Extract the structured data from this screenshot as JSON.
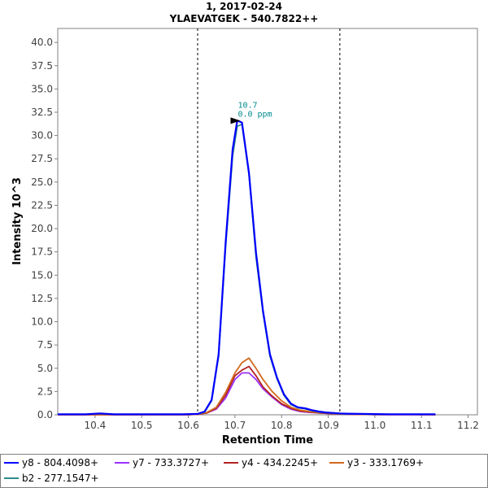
{
  "chart_data": {
    "type": "line",
    "title": "1, 2017-02-24",
    "subtitle": "YLAEVATGEK - 540.7822++",
    "xlabel": "Retention Time",
    "ylabel": "Intensity 10^3",
    "xlim": [
      10.32,
      11.22
    ],
    "ylim": [
      0,
      41.5
    ],
    "x_ticks": [
      "10.4",
      "10.5",
      "10.6",
      "10.7",
      "10.8",
      "10.9",
      "11.0",
      "11.1",
      "11.2"
    ],
    "y_ticks": [
      "0.0",
      "2.5",
      "5.0",
      "7.5",
      "10.0",
      "12.5",
      "15.0",
      "17.5",
      "20.0",
      "22.5",
      "25.0",
      "27.5",
      "30.0",
      "32.5",
      "35.0",
      "37.5",
      "40.0"
    ],
    "integration_bounds": [
      10.62,
      10.925
    ],
    "peak_annotation": {
      "rt": 10.715,
      "intensity": 31.6,
      "label_rt": "10.7",
      "label_ppm": "0.0 ppm"
    },
    "legend_placement": "bottom",
    "series": [
      {
        "name": "y8 - 804.4098+",
        "color": "#0000ff",
        "x": [
          10.32,
          10.35,
          10.38,
          10.41,
          10.44,
          10.47,
          10.5,
          10.53,
          10.56,
          10.59,
          10.62,
          10.635,
          10.65,
          10.665,
          10.68,
          10.695,
          10.705,
          10.715,
          10.73,
          10.745,
          10.76,
          10.775,
          10.79,
          10.805,
          10.82,
          10.835,
          10.85,
          10.865,
          10.88,
          10.895,
          10.91,
          10.925,
          10.94,
          10.97,
          11.0,
          11.03,
          11.06,
          11.09,
          11.13
        ],
        "values": [
          0.05,
          0.05,
          0.05,
          0.15,
          0.05,
          0.05,
          0.05,
          0.05,
          0.05,
          0.05,
          0.1,
          0.35,
          1.6,
          6.5,
          18.5,
          28.5,
          31.6,
          31.4,
          26.0,
          17.5,
          11.2,
          6.5,
          4.0,
          2.2,
          1.2,
          0.8,
          0.7,
          0.5,
          0.35,
          0.25,
          0.2,
          0.15,
          0.12,
          0.1,
          0.08,
          0.05,
          0.05,
          0.05,
          0.05
        ]
      },
      {
        "name": "y7 - 733.3727+",
        "color": "#9b30ff",
        "x": [
          10.32,
          10.4,
          10.5,
          10.6,
          10.62,
          10.64,
          10.66,
          10.68,
          10.7,
          10.715,
          10.73,
          10.745,
          10.76,
          10.78,
          10.8,
          10.82,
          10.84,
          10.86,
          10.88,
          10.9,
          10.92,
          10.95,
          11.0,
          11.13
        ],
        "values": [
          0.02,
          0.02,
          0.02,
          0.02,
          0.05,
          0.2,
          0.6,
          1.8,
          3.8,
          4.5,
          4.5,
          3.8,
          2.8,
          1.9,
          1.1,
          0.6,
          0.35,
          0.25,
          0.2,
          0.15,
          0.1,
          0.05,
          0.03,
          0.02
        ]
      },
      {
        "name": "y4 - 434.2245+",
        "color": "#b22222",
        "x": [
          10.32,
          10.4,
          10.5,
          10.6,
          10.62,
          10.64,
          10.66,
          10.68,
          10.7,
          10.715,
          10.73,
          10.745,
          10.76,
          10.78,
          10.8,
          10.82,
          10.84,
          10.86,
          10.88,
          10.9,
          10.92,
          10.95,
          11.0,
          11.13
        ],
        "values": [
          0.02,
          0.02,
          0.02,
          0.02,
          0.05,
          0.2,
          0.7,
          2.1,
          4.2,
          4.8,
          5.2,
          4.2,
          3.0,
          2.0,
          1.2,
          0.7,
          0.4,
          0.3,
          0.2,
          0.15,
          0.1,
          0.05,
          0.03,
          0.02
        ]
      },
      {
        "name": "y3 - 333.1769+",
        "color": "#d2691e",
        "x": [
          10.32,
          10.4,
          10.5,
          10.6,
          10.62,
          10.64,
          10.66,
          10.68,
          10.7,
          10.715,
          10.73,
          10.745,
          10.76,
          10.78,
          10.8,
          10.82,
          10.84,
          10.86,
          10.88,
          10.9,
          10.92,
          10.95,
          11.0,
          11.13
        ],
        "values": [
          0.02,
          0.02,
          0.02,
          0.02,
          0.05,
          0.25,
          0.8,
          2.4,
          4.5,
          5.6,
          6.1,
          5.0,
          3.8,
          2.5,
          1.5,
          0.8,
          0.5,
          0.35,
          0.25,
          0.2,
          0.12,
          0.06,
          0.03,
          0.02
        ]
      },
      {
        "name": "b2 - 277.1547+",
        "color": "#2e8b8b",
        "x": [
          10.32,
          10.35,
          10.38,
          10.41,
          10.44,
          10.47,
          10.5,
          10.53,
          10.56,
          10.59,
          10.62,
          10.635,
          10.65,
          10.665,
          10.68,
          10.695,
          10.705,
          10.715,
          10.73,
          10.745,
          10.76,
          10.775,
          10.79,
          10.805,
          10.82,
          10.835,
          10.85,
          10.865,
          10.88,
          10.895,
          10.91,
          10.925,
          10.94,
          10.97,
          11.0,
          11.03,
          11.06,
          11.09,
          11.13
        ],
        "values": [
          0.05,
          0.05,
          0.05,
          0.12,
          0.05,
          0.05,
          0.05,
          0.05,
          0.05,
          0.05,
          0.1,
          0.3,
          1.5,
          6.3,
          18.0,
          27.8,
          31.0,
          31.2,
          25.8,
          17.0,
          11.0,
          6.3,
          3.9,
          2.1,
          1.1,
          0.75,
          0.65,
          0.45,
          0.3,
          0.22,
          0.18,
          0.12,
          0.1,
          0.08,
          0.06,
          0.05,
          0.05,
          0.05,
          0.05
        ]
      }
    ]
  }
}
